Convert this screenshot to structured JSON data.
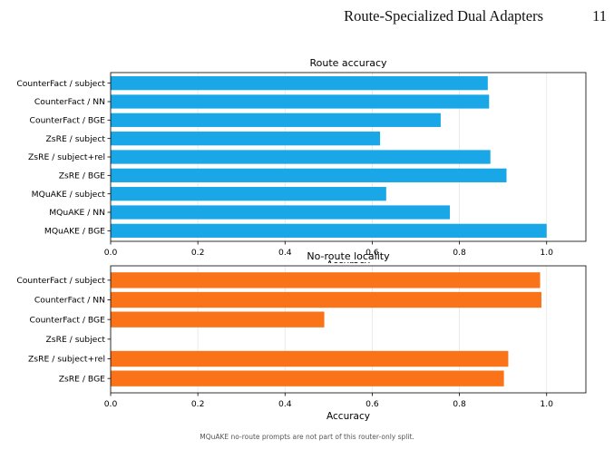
{
  "header": {
    "title": "Route-Specialized Dual Adapters",
    "page_number": "11"
  },
  "footnote": "MQuAKE no-route prompts are not part of this router-only split.",
  "chart_data": [
    {
      "type": "bar",
      "orientation": "horizontal",
      "title": "Route accuracy",
      "xlabel": "Accuracy",
      "ylabel": "",
      "xlim": [
        0,
        1.09
      ],
      "xticks": [
        0.0,
        0.2,
        0.4,
        0.6,
        0.8,
        1.0
      ],
      "xtick_labels": [
        "0.0",
        "0.2",
        "0.4",
        "0.6",
        "0.8",
        "1.0"
      ],
      "grid": "x",
      "color": "#1aa7e8",
      "categories": [
        "CounterFact / subject",
        "CounterFact / NN",
        "CounterFact / BGE",
        "ZsRE / subject",
        "ZsRE / subject+rel",
        "ZsRE / BGE",
        "MQuAKE / subject",
        "MQuAKE / NN",
        "MQuAKE / BGE"
      ],
      "values": [
        0.865,
        0.868,
        0.757,
        0.618,
        0.871,
        0.908,
        0.632,
        0.778,
        1.0
      ]
    },
    {
      "type": "bar",
      "orientation": "horizontal",
      "title": "No-route locality",
      "xlabel": "Accuracy",
      "ylabel": "",
      "xlim": [
        0,
        1.09
      ],
      "xticks": [
        0.0,
        0.2,
        0.4,
        0.6,
        0.8,
        1.0
      ],
      "xtick_labels": [
        "0.0",
        "0.2",
        "0.4",
        "0.6",
        "0.8",
        "1.0"
      ],
      "grid": "x",
      "color": "#fa7318",
      "categories": [
        "CounterFact / subject",
        "CounterFact / NN",
        "CounterFact / BGE",
        "ZsRE / subject",
        "ZsRE / subject+rel",
        "ZsRE / BGE"
      ],
      "values": [
        0.985,
        0.988,
        0.49,
        0.0,
        0.912,
        0.902
      ]
    }
  ]
}
